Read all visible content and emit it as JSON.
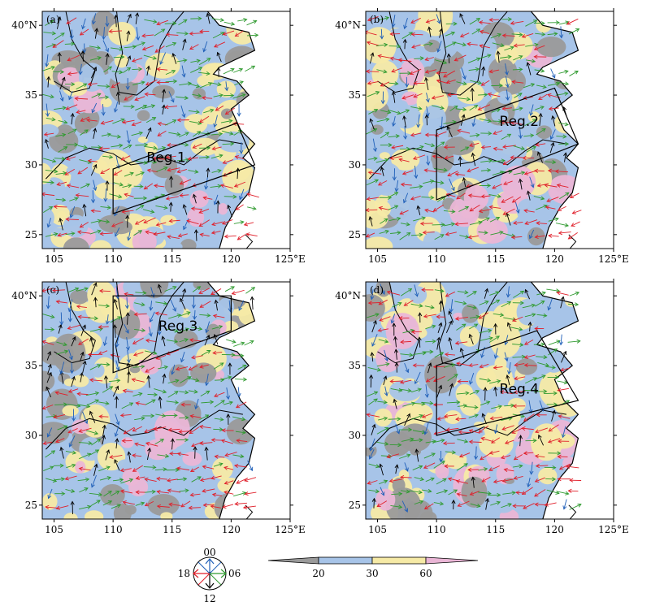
{
  "colors": {
    "gray": "#9a9a9a",
    "blue": "#a7c4e8",
    "yellow": "#f6eaa6",
    "pink": "#eab6d6",
    "arrow_00": "#1f5fb8",
    "arrow_06": "#2f9a2f",
    "arrow_12": "#000000",
    "arrow_18": "#e01f2a"
  },
  "axes": {
    "x_ticks": [
      "105",
      "110",
      "115",
      "120",
      "125°E"
    ],
    "y_ticks": [
      "40°N",
      "35",
      "30",
      "25"
    ],
    "lon_range": [
      104,
      125
    ],
    "lat_range": [
      24,
      41
    ]
  },
  "panels": [
    {
      "id": "a",
      "label": "(a)",
      "region_label": "Reg.1"
    },
    {
      "id": "b",
      "label": "(b)",
      "region_label": "Reg.2"
    },
    {
      "id": "c",
      "label": "(c)",
      "region_label": "Reg.3"
    },
    {
      "id": "d",
      "label": "(d)",
      "region_label": "Reg.4"
    }
  ],
  "clock_legend": {
    "top": "00",
    "right": "06",
    "bottom": "12",
    "left": "18"
  },
  "colorbar": {
    "labels": [
      "20",
      "30",
      "60"
    ]
  }
}
